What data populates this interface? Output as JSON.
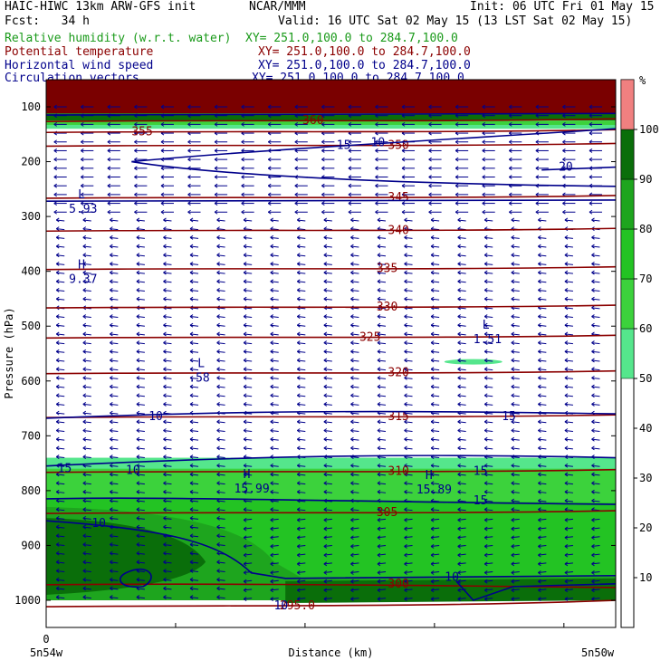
{
  "header": {
    "model": "HAIC-HIWC 13km ARW-GFS init",
    "center": "NCAR/MMM",
    "init": "Init: 06 UTC Fri 01 May 15",
    "fcst": "Fcst:   34 h",
    "valid": "Valid: 16 UTC Sat 02 May 15 (13 LST Sat 02 May 15)",
    "fields": [
      {
        "name": "Relative humidity (w.r.t. water)",
        "xy": "XY= 251.0,100.0 to 284.7,100.0",
        "color": "#1a9a1a"
      },
      {
        "name": "Potential temperature",
        "xy": "XY= 251.0,100.0 to 284.7,100.0",
        "color": "#8b0000"
      },
      {
        "name": "Horizontal wind speed",
        "xy": "XY= 251.0,100.0 to 284.7,100.0",
        "color": "#00008b"
      },
      {
        "name": "Circulation vectors",
        "xy": "XY= 251.0,100.0 to 284.7,100.0",
        "color": "#00008b"
      }
    ]
  },
  "chart_data": {
    "type": "heatmap",
    "ylabel": "Pressure (hPa)",
    "xlabel": "Distance (km)",
    "y_ticks": [
      100,
      200,
      300,
      400,
      500,
      600,
      700,
      800,
      900,
      1000
    ],
    "x_ticks": [
      "0"
    ],
    "x_endpoints": {
      "left": "5n54w",
      "right": "5n50w"
    },
    "colorbar": {
      "unit": "%",
      "ticks": [
        10,
        20,
        30,
        40,
        50,
        60,
        70,
        80,
        90,
        100
      ],
      "bands": [
        {
          "from": 50,
          "to": 60,
          "color": "#55e68c"
        },
        {
          "from": 60,
          "to": 70,
          "color": "#3cd23c"
        },
        {
          "from": 70,
          "to": 80,
          "color": "#23c323"
        },
        {
          "from": 80,
          "to": 90,
          "color": "#1ea51e"
        },
        {
          "from": 90,
          "to": 100,
          "color": "#0a6e0a"
        },
        {
          "from": 100,
          "to": 110,
          "color": "#f08080"
        }
      ]
    },
    "theta_contours": [
      {
        "label": "360",
        "p": 125
      },
      {
        "label": "355",
        "p": 145
      },
      {
        "label": "350",
        "p": 170
      },
      {
        "label": "345",
        "p": 265
      },
      {
        "label": "340",
        "p": 325
      },
      {
        "label": "335",
        "p": 395
      },
      {
        "label": "330",
        "p": 465
      },
      {
        "label": "325",
        "p": 520
      },
      {
        "label": "320",
        "p": 585
      },
      {
        "label": "315",
        "p": 665
      },
      {
        "label": "310",
        "p": 765
      },
      {
        "label": "305",
        "p": 840
      },
      {
        "label": "300",
        "p": 970
      },
      {
        "label": "295.0",
        "p": 1010
      }
    ],
    "wind_contour_labels": [
      "10",
      "15",
      "20",
      "15",
      "10",
      "10",
      "15",
      "15",
      "15",
      "10",
      "10",
      "10"
    ],
    "extrema": [
      {
        "type": "L",
        "value": "5.93",
        "p": 280,
        "x": 0.04
      },
      {
        "type": "H",
        "value": "9.37",
        "p": 408,
        "x": 0.04
      },
      {
        "type": "L",
        "value": "1.51",
        "p": 518,
        "x": 0.75
      },
      {
        "type": "L",
        "value": ".58",
        "p": 588,
        "x": 0.25
      },
      {
        "type": "H",
        "value": "15.99",
        "p": 790,
        "x": 0.33
      },
      {
        "type": "H",
        "value": "15.89",
        "p": 792,
        "x": 0.65
      }
    ]
  }
}
